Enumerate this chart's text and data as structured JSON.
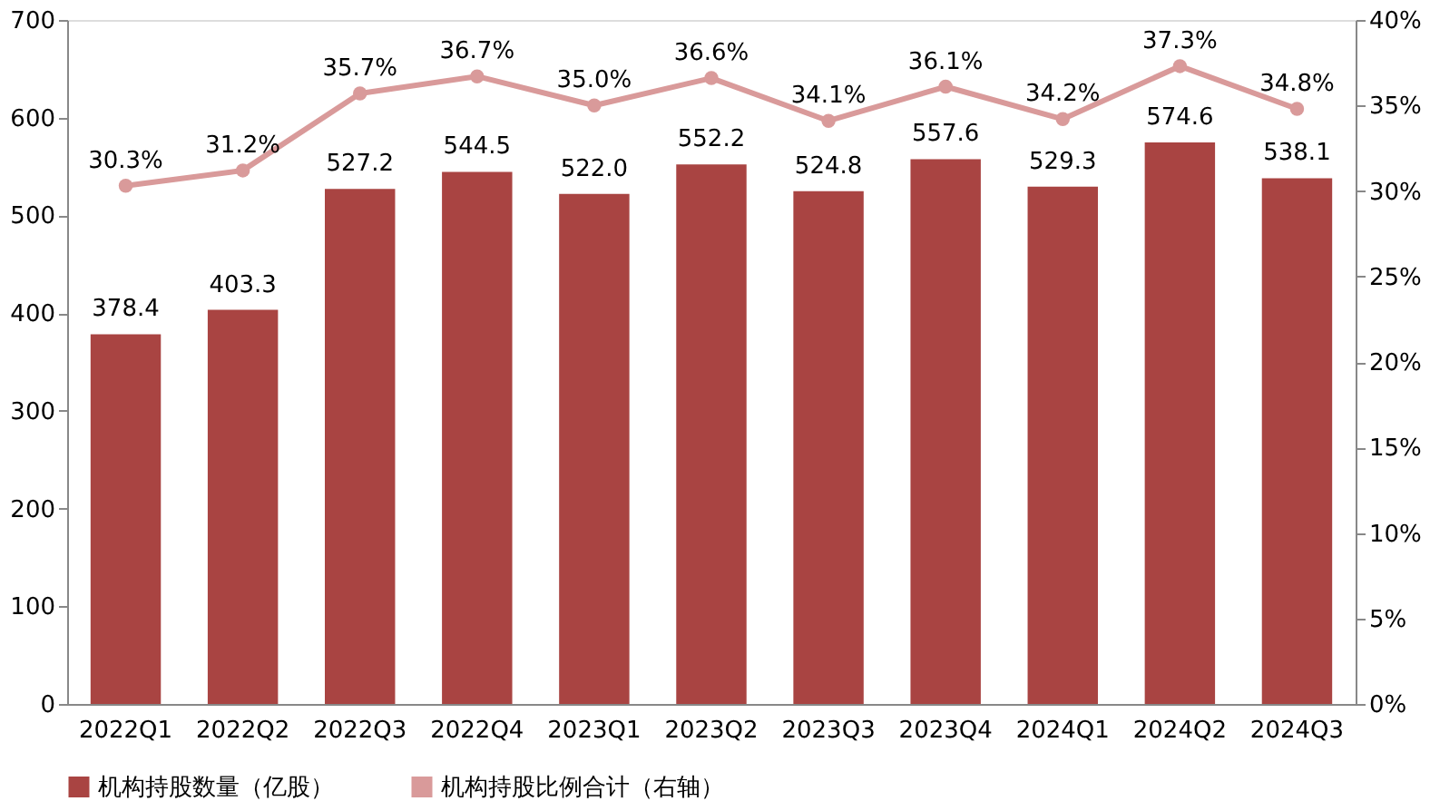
{
  "chart_data": {
    "type": "bar",
    "categories": [
      "2022Q1",
      "2022Q2",
      "2022Q3",
      "2022Q4",
      "2023Q1",
      "2023Q2",
      "2023Q3",
      "2023Q4",
      "2024Q1",
      "2024Q2",
      "2024Q3"
    ],
    "series": [
      {
        "name": "机构持股数量（亿股）",
        "color": "#a94442",
        "values": [
          378.4,
          403.3,
          527.2,
          544.5,
          522.0,
          552.2,
          524.8,
          557.6,
          529.3,
          574.6,
          538.1
        ],
        "value_labels": [
          "378.4",
          "403.3",
          "527.2",
          "544.5",
          "522.0",
          "552.2",
          "524.8",
          "557.6",
          "529.3",
          "574.6",
          "538.1"
        ]
      },
      {
        "name": "机构持股比例合计（右轴）",
        "type": "line",
        "axis": "y2",
        "color": "#d99a9a",
        "marker": "circle",
        "values": [
          30.3,
          31.2,
          35.7,
          36.7,
          35.0,
          36.6,
          34.1,
          36.1,
          34.2,
          37.3,
          34.8
        ],
        "value_labels": [
          "30.3%",
          "31.2%",
          "35.7%",
          "36.7%",
          "35.0%",
          "36.6%",
          "34.1%",
          "36.1%",
          "34.2%",
          "37.3%",
          "34.8%"
        ]
      }
    ],
    "ylim": [
      0,
      700
    ],
    "yticks": [
      0,
      100,
      200,
      300,
      400,
      500,
      600,
      700
    ],
    "y2lim": [
      0,
      40
    ],
    "y2ticks": [
      {
        "value": 0,
        "label": "0%"
      },
      {
        "value": 5,
        "label": "5%"
      },
      {
        "value": 10,
        "label": "10%"
      },
      {
        "value": 15,
        "label": "15%"
      },
      {
        "value": 20,
        "label": "20%"
      },
      {
        "value": 25,
        "label": "25%"
      },
      {
        "value": 30,
        "label": "30%"
      },
      {
        "value": 35,
        "label": "35%"
      },
      {
        "value": 40,
        "label": "40%"
      }
    ],
    "grid": false,
    "legend": "bottom"
  }
}
